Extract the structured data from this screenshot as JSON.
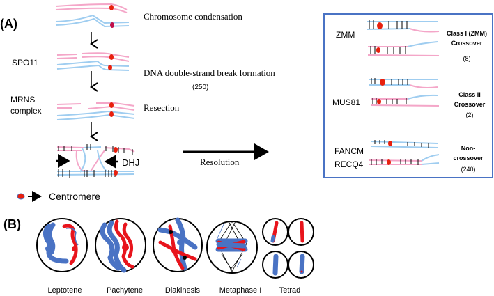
{
  "panel_a": {
    "label": "(A)",
    "steps": [
      {
        "text": "Chromosome condensation"
      },
      {
        "enzyme": "SPO11",
        "text": "DNA double-strand break formation",
        "count": "(250)"
      },
      {
        "enzyme_line1": "MRNS",
        "enzyme_line2": "complex",
        "text": "Resection"
      }
    ],
    "dhj_label": "DHJ",
    "resolution_label": "Resolution",
    "legend": {
      "text": "Centromere"
    },
    "outcomes": [
      {
        "enzyme": "ZMM",
        "line1": "Class I (ZMM)",
        "line2": "Crossover",
        "count": "(8)"
      },
      {
        "enzyme": "MUS81",
        "line1": "Class II",
        "line2": "Crossover",
        "count": "(2)"
      },
      {
        "enzyme_line1": "FANCM",
        "enzyme_line2": "RECQ4",
        "line1": "Non-",
        "line2": "crossover",
        "count": "(240)"
      }
    ],
    "colors": {
      "maternal": "#f4a6c8",
      "paternal": "#9fcdf0",
      "centromere": "#e8200e",
      "box": "#4a73c4"
    }
  },
  "panel_b": {
    "label": "(B)",
    "stages": [
      "Leptotene",
      "Pachytene",
      "Diakinesis",
      "Metaphase I",
      "Tetrad"
    ],
    "colors": {
      "chromosome_a": "#4a73c4",
      "chromosome_b": "#e8141c"
    }
  }
}
